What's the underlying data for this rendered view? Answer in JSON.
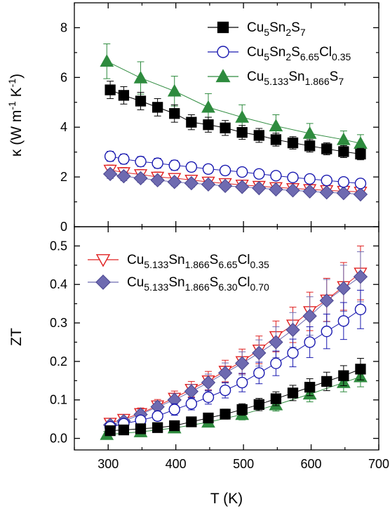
{
  "chart_data": [
    {
      "type": "scatter",
      "panel": "top",
      "xlabel": "",
      "ylabel": "κ (W m-1 K-1)",
      "xlim": [
        250,
        700
      ],
      "ylim": [
        0,
        9
      ],
      "yticks": [
        "0",
        "2",
        "4",
        "6",
        "8"
      ],
      "legend_position": "top-right",
      "series": [
        {
          "name": "Cu5Sn2S7",
          "marker": "filled-square",
          "color": "#000000",
          "x": [
            303,
            323,
            348,
            373,
            398,
            423,
            448,
            473,
            498,
            523,
            548,
            573,
            598,
            623,
            648,
            673
          ],
          "y": [
            5.5,
            5.28,
            5.05,
            4.8,
            4.55,
            4.2,
            4.1,
            3.97,
            3.79,
            3.67,
            3.5,
            3.37,
            3.25,
            3.13,
            3.02,
            2.92
          ],
          "err": [
            0.35,
            0.35,
            0.35,
            0.35,
            0.35,
            0.3,
            0.3,
            0.3,
            0.28,
            0.28,
            0.26,
            0.25,
            0.25,
            0.24,
            0.24,
            0.23
          ]
        },
        {
          "name": "Cu5Sn2S6.65Cl0.35",
          "marker": "open-circle",
          "color": "#1a1ab0",
          "x": [
            303,
            323,
            348,
            373,
            398,
            423,
            448,
            473,
            498,
            523,
            548,
            573,
            598,
            623,
            648,
            673
          ],
          "y": [
            2.83,
            2.72,
            2.62,
            2.55,
            2.47,
            2.4,
            2.32,
            2.26,
            2.2,
            2.12,
            2.05,
            1.98,
            1.92,
            1.86,
            1.8,
            1.74
          ],
          "err": [
            0.2,
            0.2,
            0.2,
            0.2,
            0.2,
            0.18,
            0.18,
            0.18,
            0.17,
            0.17,
            0.16,
            0.16,
            0.15,
            0.15,
            0.14,
            0.14
          ]
        },
        {
          "name": "Cu5.133Sn1.866S7",
          "marker": "filled-triangle-up",
          "color": "#2e8b3e",
          "fit_line": true,
          "x": [
            298,
            348,
            398,
            448,
            498,
            548,
            598,
            648,
            673
          ],
          "y": [
            6.65,
            5.98,
            5.45,
            4.8,
            4.4,
            4.05,
            3.75,
            3.5,
            3.35
          ],
          "err": [
            0.7,
            0.65,
            0.6,
            0.55,
            0.5,
            0.45,
            0.4,
            0.35,
            0.35
          ]
        },
        {
          "name": "Cu5.133Sn1.866S6.65Cl0.35",
          "marker": "open-triangle-down",
          "color": "#e02020",
          "x": [
            303,
            323,
            348,
            373,
            398,
            423,
            448,
            473,
            498,
            523,
            548,
            573,
            598,
            623,
            648,
            673
          ],
          "y": [
            2.28,
            2.18,
            2.1,
            2.0,
            1.95,
            1.88,
            1.8,
            1.74,
            1.68,
            1.63,
            1.58,
            1.54,
            1.5,
            1.46,
            1.43,
            1.4
          ],
          "err": [
            0.2,
            0.2,
            0.2,
            0.2,
            0.18,
            0.18,
            0.18,
            0.17,
            0.17,
            0.16,
            0.16,
            0.15,
            0.15,
            0.15,
            0.14,
            0.14
          ]
        },
        {
          "name": "Cu5.133Sn1.866S6.30Cl0.70",
          "marker": "filled-diamond",
          "color": "#6e6ab0",
          "x": [
            303,
            323,
            348,
            373,
            398,
            423,
            448,
            473,
            498,
            523,
            548,
            573,
            598,
            623,
            648,
            673
          ],
          "y": [
            2.12,
            2.03,
            1.95,
            1.87,
            1.8,
            1.75,
            1.7,
            1.64,
            1.6,
            1.55,
            1.5,
            1.46,
            1.42,
            1.38,
            1.35,
            1.3
          ],
          "err": [
            0.18,
            0.18,
            0.17,
            0.17,
            0.16,
            0.16,
            0.15,
            0.15,
            0.15,
            0.14,
            0.14,
            0.14,
            0.13,
            0.13,
            0.13,
            0.12
          ]
        }
      ]
    },
    {
      "type": "scatter",
      "panel": "bottom",
      "xlabel": "T (K)",
      "ylabel": "ZT",
      "xlim": [
        250,
        700
      ],
      "ylim": [
        -0.03,
        0.55
      ],
      "xticks": [
        "300",
        "400",
        "500",
        "600",
        "700"
      ],
      "yticks": [
        "0.0",
        "0.1",
        "0.2",
        "0.3",
        "0.4",
        "0.5"
      ],
      "legend_position": "top-left",
      "series": [
        {
          "name": "Cu5Sn2S7",
          "marker": "filled-square",
          "color": "#000000",
          "x": [
            303,
            323,
            348,
            373,
            398,
            423,
            448,
            473,
            498,
            523,
            548,
            573,
            598,
            623,
            648,
            673
          ],
          "y": [
            0.02,
            0.022,
            0.025,
            0.028,
            0.033,
            0.043,
            0.053,
            0.063,
            0.075,
            0.088,
            0.103,
            0.118,
            0.133,
            0.148,
            0.163,
            0.18
          ],
          "err": [
            0.01,
            0.01,
            0.01,
            0.01,
            0.01,
            0.01,
            0.012,
            0.013,
            0.015,
            0.016,
            0.018,
            0.02,
            0.022,
            0.024,
            0.026,
            0.028
          ]
        },
        {
          "name": "Cu5Sn2S6.65Cl0.35",
          "marker": "open-circle",
          "color": "#1a1ab0",
          "x": [
            303,
            323,
            348,
            373,
            398,
            423,
            448,
            473,
            498,
            523,
            548,
            573,
            598,
            623,
            648,
            673
          ],
          "y": [
            0.03,
            0.038,
            0.047,
            0.058,
            0.075,
            0.09,
            0.107,
            0.125,
            0.145,
            0.17,
            0.195,
            0.222,
            0.25,
            0.278,
            0.305,
            0.335
          ],
          "err": [
            0.01,
            0.01,
            0.01,
            0.012,
            0.015,
            0.016,
            0.018,
            0.02,
            0.024,
            0.028,
            0.032,
            0.036,
            0.04,
            0.045,
            0.048,
            0.05
          ]
        },
        {
          "name": "Cu5.133Sn1.866S7",
          "marker": "filled-triangle-up",
          "color": "#2e8b3e",
          "fit_line": true,
          "x": [
            298,
            348,
            398,
            448,
            498,
            548,
            598,
            648,
            673
          ],
          "y": [
            0.01,
            0.017,
            0.027,
            0.042,
            0.062,
            0.087,
            0.115,
            0.145,
            0.16
          ],
          "err": [
            0.008,
            0.008,
            0.01,
            0.012,
            0.014,
            0.016,
            0.02,
            0.024,
            0.026
          ]
        },
        {
          "name": "Cu5.133Sn1.866S6.65Cl0.35",
          "marker": "open-triangle-down",
          "color": "#e02020",
          "x": [
            303,
            323,
            348,
            373,
            398,
            423,
            448,
            473,
            498,
            523,
            548,
            573,
            598,
            623,
            648,
            673
          ],
          "y": [
            0.04,
            0.05,
            0.065,
            0.085,
            0.105,
            0.128,
            0.15,
            0.175,
            0.2,
            0.23,
            0.265,
            0.295,
            0.33,
            0.36,
            0.395,
            0.43
          ],
          "err": [
            0.012,
            0.012,
            0.014,
            0.016,
            0.018,
            0.02,
            0.024,
            0.028,
            0.032,
            0.036,
            0.04,
            0.046,
            0.05,
            0.056,
            0.062,
            0.07
          ]
        },
        {
          "name": "Cu5.133Sn1.866S6.30Cl0.70",
          "marker": "filled-diamond",
          "color": "#6e6ab0",
          "x": [
            303,
            323,
            348,
            373,
            398,
            423,
            448,
            473,
            498,
            523,
            548,
            573,
            598,
            623,
            648,
            673
          ],
          "y": [
            0.035,
            0.045,
            0.062,
            0.082,
            0.1,
            0.122,
            0.145,
            0.17,
            0.195,
            0.222,
            0.25,
            0.282,
            0.318,
            0.358,
            0.39,
            0.42
          ],
          "err": [
            0.01,
            0.01,
            0.012,
            0.014,
            0.016,
            0.018,
            0.022,
            0.026,
            0.03,
            0.034,
            0.04,
            0.045,
            0.05,
            0.055,
            0.06,
            0.065
          ]
        }
      ]
    }
  ],
  "legends": {
    "top": [
      {
        "label": "Cu5Sn2S7",
        "series": 0
      },
      {
        "label": "Cu5Sn2S6.65Cl0.35",
        "series": 1
      },
      {
        "label": "Cu5.133Sn1.866S7",
        "series": 2
      }
    ],
    "bottom": [
      {
        "label": "Cu5.133Sn1.866S6.65Cl0.35",
        "series": 3
      },
      {
        "label": "Cu5.133Sn1.866S6.30Cl0.70",
        "series": 4
      }
    ]
  }
}
